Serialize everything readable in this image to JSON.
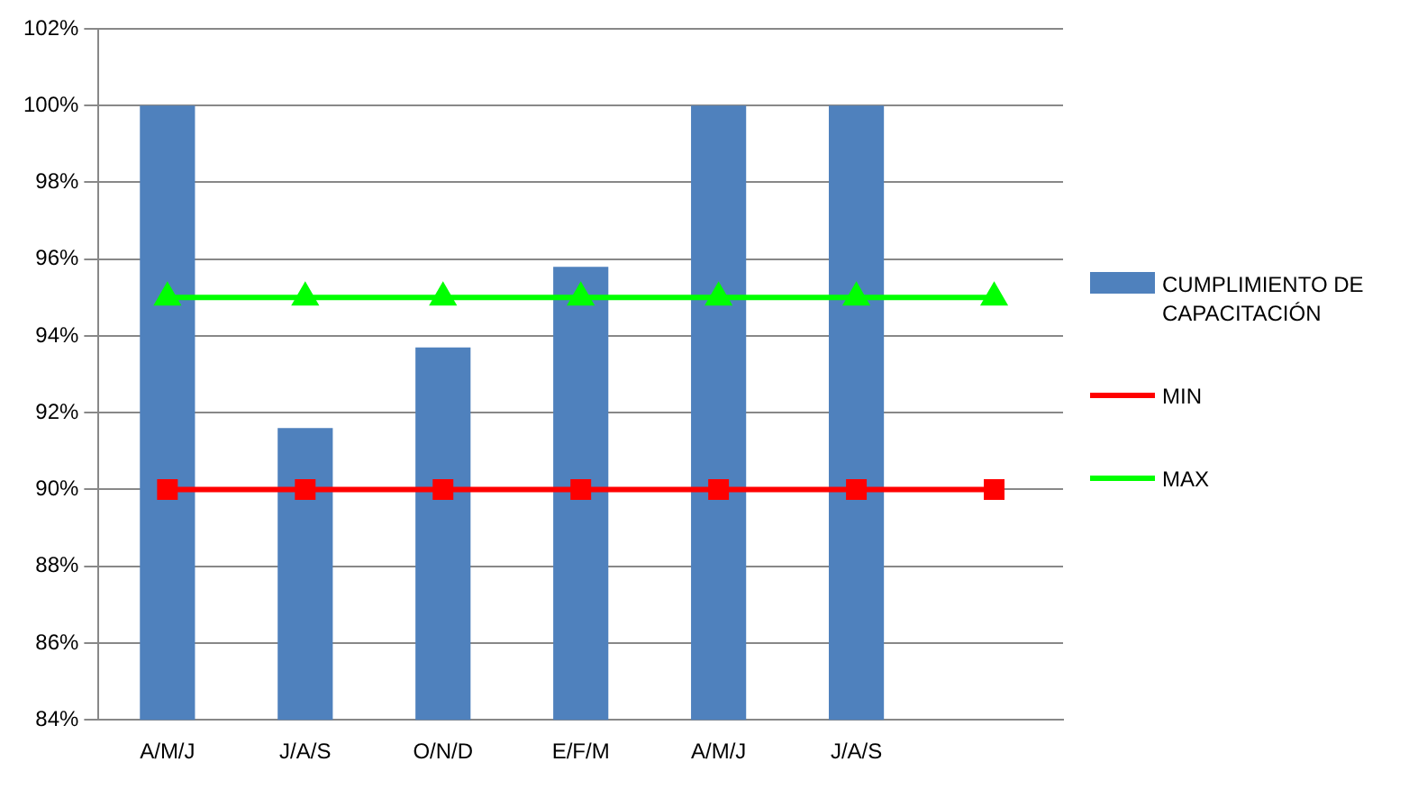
{
  "chart_data": {
    "type": "bar",
    "categories": [
      "A/M/J",
      "J/A/S",
      "O/N/D",
      "E/F/M",
      "A/M/J",
      "J/A/S",
      null
    ],
    "series": [
      {
        "name": "CUMPLIMIENTO DE CAPACITACIÓN",
        "color": "#4f81bd",
        "values": [
          100,
          91.6,
          93.7,
          95.8,
          100,
          100,
          null
        ]
      },
      {
        "name": "MIN",
        "type": "line",
        "color": "#ff0000",
        "marker": "square",
        "values": [
          90,
          90,
          90,
          90,
          90,
          90,
          90
        ]
      },
      {
        "name": "MAX",
        "type": "line",
        "color": "#00ff00",
        "marker": "triangle",
        "values": [
          95,
          95,
          95,
          95,
          95,
          95,
          95
        ]
      }
    ],
    "ylim": [
      84,
      102
    ],
    "yticks": [
      {
        "value": 84,
        "label": "84%"
      },
      {
        "value": 86,
        "label": "86%"
      },
      {
        "value": 88,
        "label": "88%"
      },
      {
        "value": 90,
        "label": "90%"
      },
      {
        "value": 92,
        "label": "92%"
      },
      {
        "value": 94,
        "label": "94%"
      },
      {
        "value": 96,
        "label": "96%"
      },
      {
        "value": 98,
        "label": "98%"
      },
      {
        "value": 100,
        "label": "100%"
      },
      {
        "value": 102,
        "label": "102%"
      }
    ],
    "grid": "y",
    "legend": "right"
  }
}
